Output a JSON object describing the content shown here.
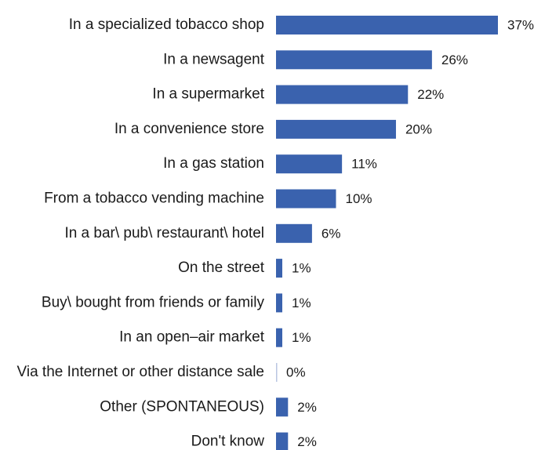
{
  "chart_data": {
    "type": "bar",
    "orientation": "horizontal",
    "categories": [
      "In a specialized tobacco shop",
      "In a newsagent",
      "In a supermarket",
      "In a convenience store",
      "In a gas station",
      "From a tobacco vending machine",
      "In a bar\\ pub\\ restaurant\\ hotel",
      "On the street",
      "Buy\\ bought from friends or family",
      "In an open–air market",
      "Via the Internet or other distance sale",
      "Other (SPONTANEOUS)",
      "Don't know"
    ],
    "values": [
      37,
      26,
      22,
      20,
      11,
      10,
      6,
      1,
      1,
      1,
      0,
      2,
      2
    ],
    "value_labels": [
      "37%",
      "26%",
      "22%",
      "20%",
      "11%",
      "10%",
      "6%",
      "1%",
      "1%",
      "1%",
      "0%",
      "2%",
      "2%"
    ],
    "title": "",
    "xlabel": "",
    "ylabel": "",
    "xlim": [
      0,
      37
    ],
    "grid": false,
    "legend": "none",
    "bar_color": "#3a62ae"
  }
}
